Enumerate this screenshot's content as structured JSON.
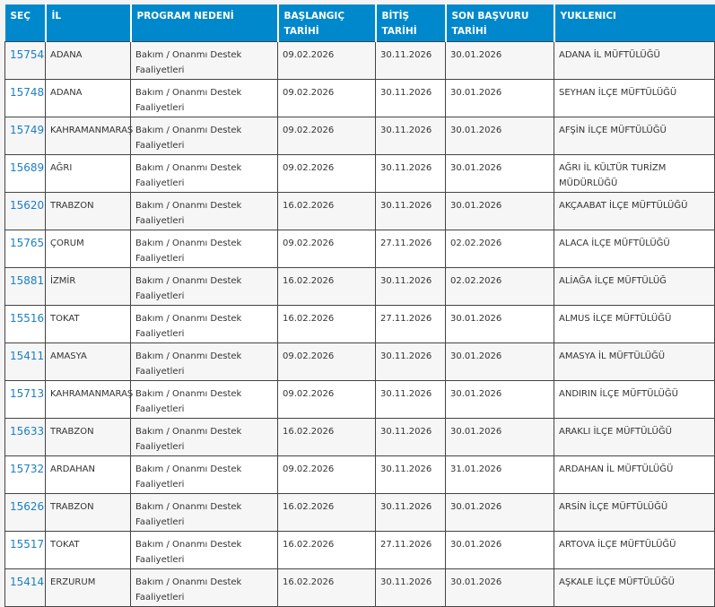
{
  "columns": [
    "SEÇ",
    "İL",
    "PROGRAM NEDENİ",
    "BAŞLANGIÇ TARİHİ",
    "BİTİŞ TARİHİ",
    "SON BAŞVURU TARİHİ",
    "YUKLENICI"
  ],
  "rows": [
    [
      "15754",
      "ADANA",
      "Bakım / Onanmı Destek Faaliyetleri",
      "09.02.2026",
      "30.11.2026",
      "30.01.2026",
      "ADANA İL MÜFTÜLÜĞÜ"
    ],
    [
      "15748",
      "ADANA",
      "Bakım / Onanmı Destek Faaliyetleri",
      "09.02.2026",
      "30.11.2026",
      "30.01.2026",
      "SEYHAN İLÇE MÜFTÜLÜĞÜ"
    ],
    [
      "15749",
      "KAHRAMANMARAŞ",
      "Bakım / Onanmı Destek Faaliyetleri",
      "09.02.2026",
      "30.11.2026",
      "30.01.2026",
      "AFŞİN İLÇE MÜFTÜLÜĞÜ"
    ],
    [
      "15689",
      "AĞRI",
      "Bakım / Onanmı Destek Faaliyetleri",
      "09.02.2026",
      "30.11.2026",
      "30.01.2026",
      "AĞRI İL KÜLTÜR TURİZM MÜDÜRLÜĞÜ"
    ],
    [
      "15620",
      "TRABZON",
      "Bakım / Onanmı Destek Faaliyetleri",
      "16.02.2026",
      "30.11.2026",
      "30.01.2026",
      "AKÇAABAT İLÇE MÜFTÜLÜĞÜ"
    ],
    [
      "15765",
      "ÇORUM",
      "Bakım / Onanmı Destek Faaliyetleri",
      "09.02.2026",
      "27.11.2026",
      "02.02.2026",
      "ALACA İLÇE MÜFTÜLÜĞÜ"
    ],
    [
      "15881",
      "İZMİR",
      "Bakım / Onanmı Destek Faaliyetleri",
      "16.02.2026",
      "30.11.2026",
      "02.02.2026",
      "ALİAĞA İLÇE MÜFTÜLÜĞ"
    ],
    [
      "15516",
      "TOKAT",
      "Bakım / Onanmı Destek Faaliyetleri",
      "16.02.2026",
      "27.11.2026",
      "30.01.2026",
      "ALMUS İLÇE MÜFTÜLÜĞÜ"
    ],
    [
      "15411",
      "AMASYA",
      "Bakım / Onanmı Destek Faaliyetleri",
      "09.02.2026",
      "30.11.2026",
      "30.01.2026",
      "AMASYA İL MÜFTÜLÜĞÜ"
    ],
    [
      "15713",
      "KAHRAMANMARAŞ",
      "Bakım / Onanmı Destek Faaliyetleri",
      "09.02.2026",
      "30.11.2026",
      "30.01.2026",
      "ANDIRIN İLÇE MÜFTÜLÜĞÜ"
    ],
    [
      "15633",
      "TRABZON",
      "Bakım / Onanmı Destek Faaliyetleri",
      "16.02.2026",
      "30.11.2026",
      "30.01.2026",
      "ARAKLI İLÇE MÜFTÜLÜĞÜ"
    ],
    [
      "15732",
      "ARDAHAN",
      "Bakım / Onanmı Destek Faaliyetleri",
      "09.02.2026",
      "30.11.2026",
      "31.01.2026",
      "ARDAHAN İL MÜFTÜLÜĞÜ"
    ],
    [
      "15626",
      "TRABZON",
      "Bakım / Onanmı Destek Faaliyetleri",
      "16.02.2026",
      "30.11.2026",
      "30.01.2026",
      "ARSİN İLÇE MÜFTÜLÜĞÜ"
    ],
    [
      "15517",
      "TOKAT",
      "Bakım / Onanmı Destek Faaliyetleri",
      "16.02.2026",
      "27.11.2026",
      "30.01.2026",
      "ARTOVA İLÇE MÜFTÜLÜĞÜ"
    ],
    [
      "15414",
      "ERZURUM",
      "Bakım / Onanmı Destek Faaliyetleri",
      "16.02.2026",
      "30.11.2026",
      "30.01.2026",
      "AŞKALE İLÇE MÜFTÜLÜĞÜ"
    ]
  ],
  "colors": {
    "header": "#0088cc",
    "link": "#1a7fc4"
  }
}
